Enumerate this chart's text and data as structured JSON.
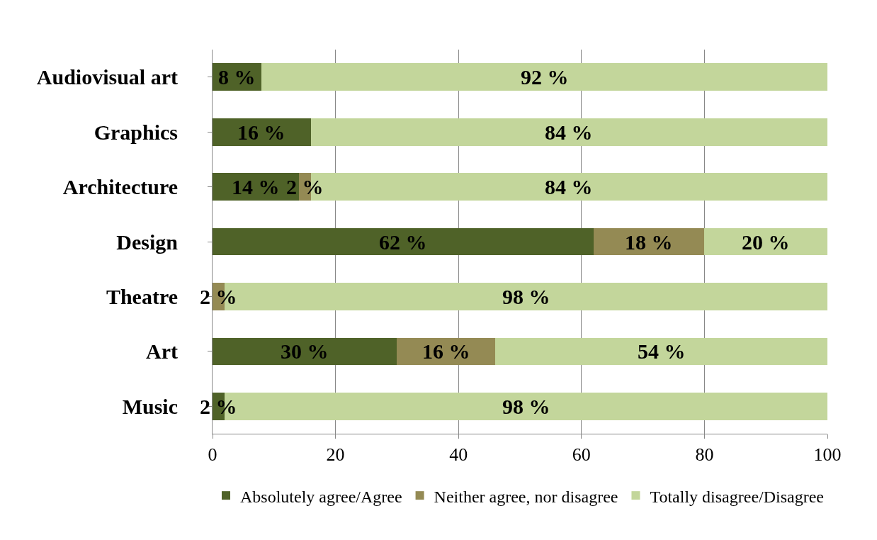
{
  "chart_data": {
    "type": "bar",
    "orientation": "horizontal",
    "stacked": true,
    "categories": [
      "Audiovisual art",
      "Graphics",
      "Architecture",
      "Design",
      "Theatre",
      "Art",
      "Music"
    ],
    "series": [
      {
        "name": "Absolutely agree/Agree",
        "color": "#4f6228",
        "values": [
          8,
          16,
          14,
          62,
          0,
          30,
          2
        ],
        "value_labels": [
          "8 %",
          "16 %",
          "14 %",
          "62 %",
          null,
          "30 %",
          "2 %"
        ]
      },
      {
        "name": "Neither agree, nor disagree",
        "color": "#948a54",
        "values": [
          0,
          0,
          2,
          18,
          2,
          16,
          0
        ],
        "value_labels": [
          null,
          null,
          "2 %",
          "18 %",
          "2 %",
          "16 %",
          null
        ]
      },
      {
        "name": "Totally disagree/Disagree",
        "color": "#c3d69b",
        "values": [
          92,
          84,
          84,
          20,
          98,
          54,
          98
        ],
        "value_labels": [
          "92 %",
          "84 %",
          "84 %",
          "20 %",
          "98 %",
          "54 %",
          "98 %"
        ]
      }
    ],
    "xlim": [
      0,
      100
    ],
    "xticks": [
      0,
      20,
      40,
      60,
      80,
      100
    ],
    "grid": "x",
    "legend": "bottom"
  }
}
